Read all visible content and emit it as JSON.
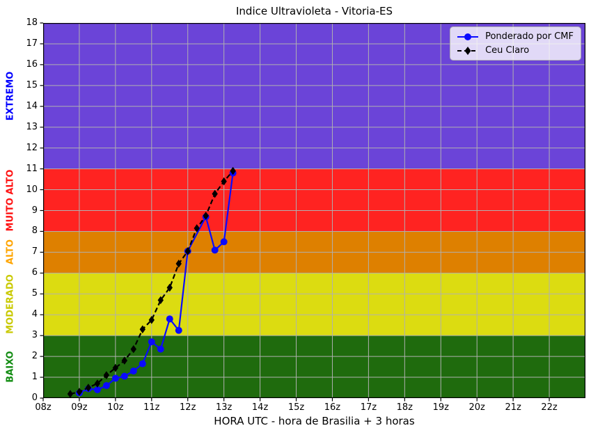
{
  "window": {
    "kind": "matplotlib-style plot image"
  },
  "chart_data": {
    "type": "line",
    "title": "Indice Ultravioleta - Vitoria-ES",
    "xlabel": "HORA UTC - hora de Brasilia + 3 horas",
    "ylabel": "",
    "xlim": [
      8,
      23
    ],
    "ylim": [
      0,
      18
    ],
    "grid": true,
    "grid_color": "#b0b0b0",
    "legend_position": "top-right",
    "x_ticks": {
      "values": [
        8,
        9,
        10,
        11,
        12,
        13,
        14,
        15,
        16,
        17,
        18,
        19,
        20,
        21,
        22
      ],
      "labels": [
        "08z",
        "09z",
        "10z",
        "11z",
        "12z",
        "13z",
        "14z",
        "15z",
        "16z",
        "17z",
        "18z",
        "19z",
        "20z",
        "21z",
        "22z"
      ]
    },
    "y_ticks": {
      "values": [
        0,
        1,
        2,
        3,
        4,
        5,
        6,
        7,
        8,
        9,
        10,
        11,
        12,
        13,
        14,
        15,
        16,
        17,
        18
      ],
      "labels": [
        "0",
        "1",
        "2",
        "3",
        "4",
        "5",
        "6",
        "7",
        "8",
        "9",
        "10",
        "11",
        "12",
        "13",
        "14",
        "15",
        "16",
        "17",
        "18"
      ]
    },
    "bands": [
      {
        "label": "BAIXO",
        "range": [
          0,
          3
        ],
        "color": "#1f6b0d",
        "label_color": "#128c12"
      },
      {
        "label": "MODERADO",
        "range": [
          3,
          6
        ],
        "color": "#dcdc11",
        "label_color": "#c9c900"
      },
      {
        "label": "ALTO",
        "range": [
          6,
          8
        ],
        "color": "#de8000",
        "label_color": "#ffa500"
      },
      {
        "label": "MUITO ALTO",
        "range": [
          8,
          11
        ],
        "color": "#ff2321",
        "label_color": "#ff1212"
      },
      {
        "label": "EXTREMO",
        "range": [
          11,
          18
        ],
        "color": "#6b44d8",
        "label_color": "#0000ff"
      }
    ],
    "series": [
      {
        "name": "Ponderado por CMF",
        "color": "#0a0aff",
        "style": "solid",
        "marker": "circle",
        "x": [
          9.0,
          9.25,
          9.5,
          9.75,
          10.0,
          10.25,
          10.5,
          10.75,
          11.0,
          11.25,
          11.5,
          11.75,
          12.0,
          12.5,
          12.75,
          13.0,
          13.25
        ],
        "y": [
          0.25,
          0.45,
          0.4,
          0.6,
          0.95,
          1.05,
          1.3,
          1.65,
          2.7,
          2.35,
          3.8,
          3.25,
          7.05,
          8.7,
          7.1,
          7.5,
          10.8
        ]
      },
      {
        "name": "Ceu Claro",
        "color": "#000000",
        "style": "dashed",
        "marker": "diamond",
        "x": [
          8.75,
          9.0,
          9.25,
          9.5,
          9.75,
          10.0,
          10.25,
          10.5,
          10.75,
          11.0,
          11.25,
          11.5,
          11.75,
          12.0,
          12.25,
          12.5,
          12.75,
          13.0,
          13.25
        ],
        "y": [
          0.2,
          0.3,
          0.5,
          0.7,
          1.1,
          1.45,
          1.8,
          2.35,
          3.3,
          3.75,
          4.7,
          5.3,
          6.45,
          7.05,
          8.15,
          8.75,
          9.8,
          10.4,
          10.9
        ]
      }
    ]
  }
}
